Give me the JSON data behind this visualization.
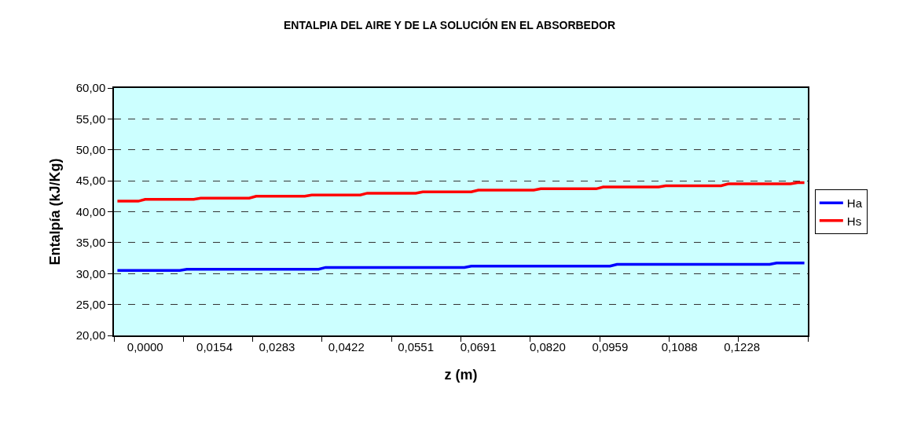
{
  "chart_data": {
    "type": "line",
    "title": "ENTALPIA DEL AIRE Y DE LA SOLUCIÓN EN EL ABSORBEDOR",
    "xlabel": "z (m)",
    "ylabel": "Entalpía (kJ/Kg)",
    "categories": [
      null,
      null,
      null,
      null,
      "0,0000",
      null,
      null,
      null,
      null,
      null,
      null,
      null,
      null,
      null,
      "0,0154",
      null,
      null,
      null,
      null,
      null,
      null,
      null,
      null,
      "0,0283",
      null,
      null,
      null,
      null,
      null,
      null,
      null,
      null,
      null,
      "0,0422",
      null,
      null,
      null,
      null,
      null,
      null,
      null,
      null,
      null,
      "0,0551",
      null,
      null,
      null,
      null,
      null,
      null,
      null,
      null,
      "0,0691",
      null,
      null,
      null,
      null,
      null,
      null,
      null,
      null,
      null,
      "0,0820",
      null,
      null,
      null,
      null,
      null,
      null,
      null,
      null,
      "0,0959",
      null,
      null,
      null,
      null,
      null,
      null,
      null,
      null,
      null,
      "0,1088",
      null,
      null,
      null,
      null,
      null,
      null,
      null,
      null,
      "0,1228",
      null,
      null,
      null,
      null,
      null,
      null,
      null,
      null,
      null
    ],
    "series": [
      {
        "name": "Ha",
        "color": "#0000ff",
        "values": [
          30.5,
          30.5,
          30.5,
          30.5,
          30.5,
          30.5,
          30.5,
          30.5,
          30.5,
          30.5,
          30.7,
          30.7,
          30.7,
          30.7,
          30.7,
          30.7,
          30.7,
          30.7,
          30.7,
          30.7,
          30.7,
          30.7,
          30.7,
          30.7,
          30.7,
          30.7,
          30.7,
          30.7,
          30.7,
          30.7,
          31.0,
          31.0,
          31.0,
          31.0,
          31.0,
          31.0,
          31.0,
          31.0,
          31.0,
          31.0,
          31.0,
          31.0,
          31.0,
          31.0,
          31.0,
          31.0,
          31.0,
          31.0,
          31.0,
          31.0,
          31.0,
          31.2,
          31.2,
          31.2,
          31.2,
          31.2,
          31.2,
          31.2,
          31.2,
          31.2,
          31.2,
          31.2,
          31.2,
          31.2,
          31.2,
          31.2,
          31.2,
          31.2,
          31.2,
          31.2,
          31.2,
          31.2,
          31.5,
          31.5,
          31.5,
          31.5,
          31.5,
          31.5,
          31.5,
          31.5,
          31.5,
          31.5,
          31.5,
          31.5,
          31.5,
          31.5,
          31.5,
          31.5,
          31.5,
          31.5,
          31.5,
          31.5,
          31.5,
          31.5,
          31.5,
          31.7,
          31.7,
          31.7,
          31.7,
          31.7
        ]
      },
      {
        "name": "Hs",
        "color": "#ff0000",
        "values": [
          41.7,
          41.7,
          41.7,
          41.7,
          42.0,
          42.0,
          42.0,
          42.0,
          42.0,
          42.0,
          42.0,
          42.0,
          42.2,
          42.2,
          42.2,
          42.2,
          42.2,
          42.2,
          42.2,
          42.2,
          42.5,
          42.5,
          42.5,
          42.5,
          42.5,
          42.5,
          42.5,
          42.5,
          42.7,
          42.7,
          42.7,
          42.7,
          42.7,
          42.7,
          42.7,
          42.7,
          43.0,
          43.0,
          43.0,
          43.0,
          43.0,
          43.0,
          43.0,
          43.0,
          43.2,
          43.2,
          43.2,
          43.2,
          43.2,
          43.2,
          43.2,
          43.2,
          43.5,
          43.5,
          43.5,
          43.5,
          43.5,
          43.5,
          43.5,
          43.5,
          43.5,
          43.7,
          43.7,
          43.7,
          43.7,
          43.7,
          43.7,
          43.7,
          43.7,
          43.7,
          44.0,
          44.0,
          44.0,
          44.0,
          44.0,
          44.0,
          44.0,
          44.0,
          44.0,
          44.2,
          44.2,
          44.2,
          44.2,
          44.2,
          44.2,
          44.2,
          44.2,
          44.2,
          44.5,
          44.5,
          44.5,
          44.5,
          44.5,
          44.5,
          44.5,
          44.5,
          44.5,
          44.5,
          44.7,
          44.7
        ]
      }
    ],
    "ylim": [
      20,
      60
    ],
    "yticks": [
      {
        "value": 20,
        "label": "20,00"
      },
      {
        "value": 25,
        "label": "25,00"
      },
      {
        "value": 30,
        "label": "30,00"
      },
      {
        "value": 35,
        "label": "35,00"
      },
      {
        "value": 40,
        "label": "40,00"
      },
      {
        "value": 45,
        "label": "45,00"
      },
      {
        "value": 50,
        "label": "50,00"
      },
      {
        "value": 55,
        "label": "55,00"
      },
      {
        "value": 60,
        "label": "60,00"
      }
    ],
    "grid": "y",
    "legend": "right",
    "line_style": "solid"
  }
}
